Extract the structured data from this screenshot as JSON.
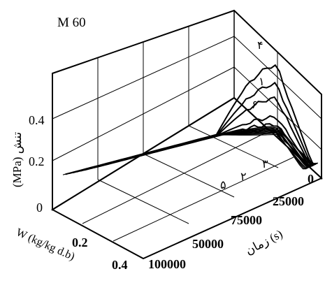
{
  "chart_data": {
    "type": "line",
    "projection": "3d",
    "title": "M 60",
    "zlabel": "(MPa) تنش",
    "xlabel": "زمان (s)",
    "ylabel": "W (kg/kg d.b)",
    "zlim": [
      0,
      0.5
    ],
    "xlim": [
      0,
      100000
    ],
    "ylim": [
      0,
      0.45
    ],
    "z_ticks": [
      "0",
      "0.2",
      "0.4"
    ],
    "x_ticks": [
      "0",
      "25000",
      "75000",
      "50000",
      "100000"
    ],
    "y_ticks": [
      "0.2",
      "0.4"
    ],
    "grid": true,
    "series": [
      {
        "name": "۴",
        "peak": 0.46
      },
      {
        "name": "۱",
        "peak": 0.38
      },
      {
        "name": "۶",
        "peak": 0.32
      },
      {
        "name": "۳",
        "peak": 0.24
      },
      {
        "name": "۲",
        "peak": 0.21
      },
      {
        "name": "۵",
        "peak": 0.19
      }
    ]
  }
}
